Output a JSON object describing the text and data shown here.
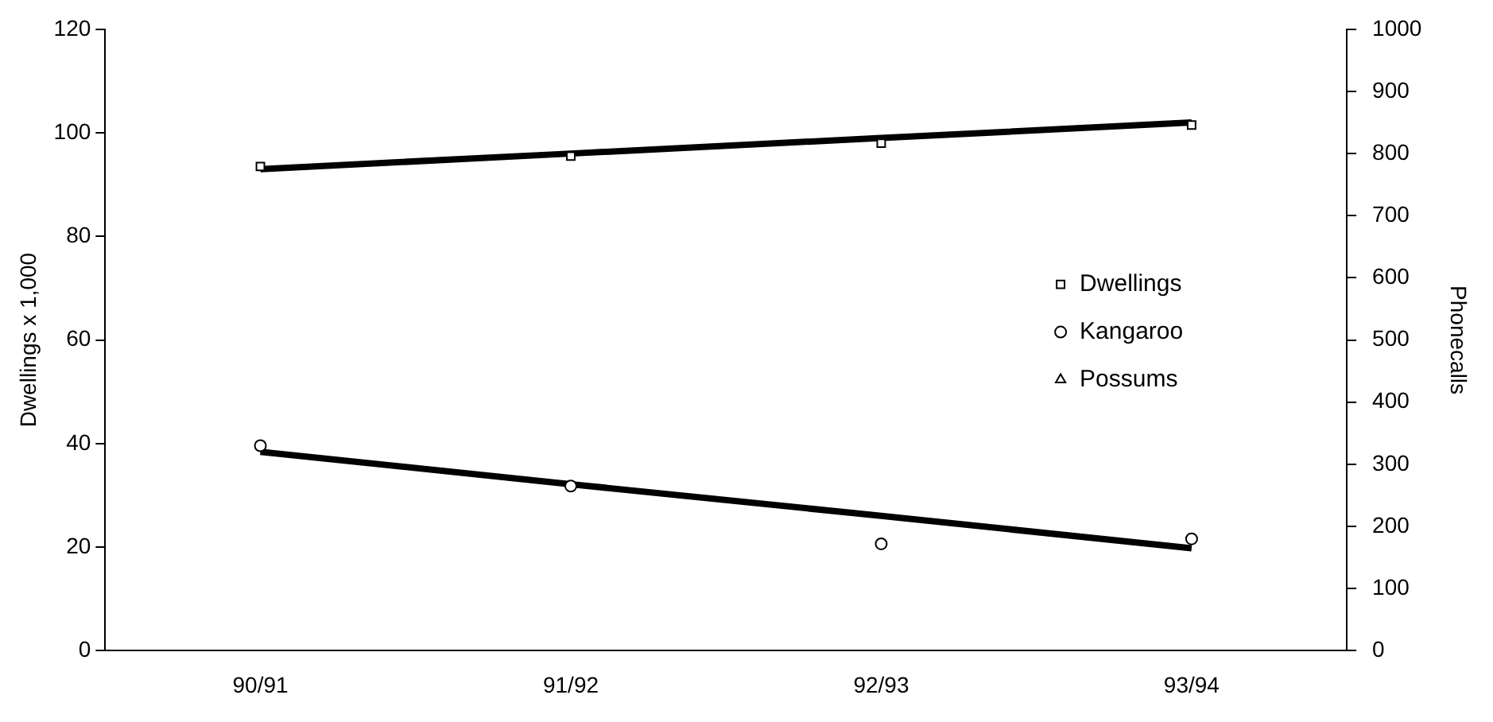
{
  "chart_data": {
    "type": "scatter",
    "ylabel": "Dwellings x 1,000",
    "y2label": "Phonecalls",
    "categories": [
      "90/91",
      "91/92",
      "92/93",
      "93/94"
    ],
    "ylim": [
      0,
      120
    ],
    "yticks": [
      0,
      20,
      40,
      60,
      80,
      100,
      120
    ],
    "y2lim": [
      0,
      1000
    ],
    "y2ticks": [
      0,
      100,
      200,
      300,
      400,
      500,
      600,
      700,
      800,
      900,
      1000
    ],
    "grid": false,
    "legend": "right",
    "series": [
      {
        "name": "Dwellings",
        "marker": "square",
        "color": "#000000",
        "values": [
          93.5,
          95.5,
          98,
          101.5
        ]
      },
      {
        "name": "Kangaroo",
        "marker": "circle",
        "color": "#000000",
        "axis": "y2",
        "values": [
          330,
          265,
          172,
          180
        ]
      },
      {
        "name": "Possums",
        "marker": "triangle",
        "color": "#000000",
        "axis": "y2",
        "values": [
          null,
          null,
          null,
          null
        ]
      },
      {
        "type": "line",
        "marker": "none",
        "color": "#000000",
        "values": [
          93,
          96,
          99,
          102
        ]
      },
      {
        "type": "line",
        "marker": "none",
        "color": "#000000",
        "axis": "y2",
        "values": [
          320,
          268,
          217,
          165
        ]
      }
    ]
  }
}
